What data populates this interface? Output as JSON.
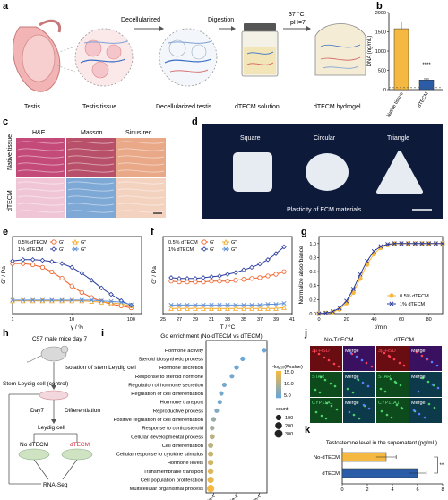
{
  "panel_letters": [
    "a",
    "b",
    "c",
    "d",
    "e",
    "f",
    "g",
    "h",
    "i",
    "j",
    "k"
  ],
  "panel_a": {
    "step_labels": [
      "Testis",
      "Testis tissue",
      "Decellularized testis",
      "dTECM solution",
      "dTECM hydrogel"
    ],
    "arrow_labels": [
      "Decellularized",
      "Digestion"
    ],
    "conditions": [
      "37 °C",
      "pH=7"
    ]
  },
  "panel_c": {
    "column_headers": [
      "H&E",
      "Masson",
      "Sirius red"
    ],
    "row_labels": [
      "Native tissue",
      "dTECM"
    ],
    "colors": {
      "he_native": "#c44a7a",
      "masson_native": "#b8506a",
      "sirius_native": "#e9a888",
      "he_dtecm": "#f0c6d6",
      "masson_dtecm": "#7ea8d6",
      "sirius_dtecm": "#f4d2c0"
    }
  },
  "panel_d": {
    "shape_labels": [
      "Square",
      "Circular",
      "Triangle"
    ],
    "caption": "Plasticity of ECM materials",
    "background_color": "#0d1a3a"
  },
  "panel_h": {
    "title": "C57 male mice day 7",
    "isolation_label": "Isolation of stem Leydig cell",
    "control_label": "Stem Leydig cell (control)",
    "day_label": "Day7",
    "diff_label": "Differentiation",
    "leydig_label": "Leydig cell",
    "no_dtecm_label": "No dTECM",
    "dtecm_label": "dTECM",
    "rnaseq_label": "RNA-Seq"
  },
  "panel_j": {
    "col_headers": [
      "No-TdECM",
      "dTECM"
    ],
    "markers": [
      "3β-HSD",
      "STAR",
      "CYP11A1"
    ],
    "merge_label": "Merge"
  },
  "chart_data": [
    {
      "panel": "b",
      "type": "bar",
      "categories": [
        "Native tissue",
        "dTECM"
      ],
      "values": [
        1580,
        250
      ],
      "error": [
        180,
        30
      ],
      "ylabel": "DNA (ng/mL)",
      "ylim": [
        0,
        2000
      ],
      "yticks": [
        0,
        500,
        1000,
        1500,
        2000
      ],
      "reference_line": 50,
      "significance": "****",
      "colors": [
        "#f5b942",
        "#2a5ca8"
      ]
    },
    {
      "panel": "e",
      "type": "line",
      "xscale": "log",
      "xlabel": "γ / %",
      "ylabel": "G' / Pa",
      "xlim": [
        1,
        150
      ],
      "xticks": [
        1,
        10,
        100
      ],
      "ylim": [
        0,
        120
      ],
      "legend": {
        "rows": [
          "0.5% dTECM",
          "1% dTECM"
        ],
        "cols": [
          "G'",
          "G\""
        ]
      },
      "series": [
        {
          "conc": "0.5% dTECM",
          "mod": "G'",
          "color": "#f05a1e",
          "marker": "circle",
          "x": [
            1,
            1.5,
            2.2,
            3.2,
            4.6,
            6.8,
            10,
            14.7,
            21.5,
            31.6,
            46,
            68,
            100
          ],
          "y": [
            78,
            78,
            76,
            72,
            65,
            55,
            43,
            33,
            25,
            19,
            15,
            12,
            9
          ]
        },
        {
          "conc": "0.5% dTECM",
          "mod": "G\"",
          "color": "#f5a623",
          "marker": "triangle",
          "x": [
            1,
            1.5,
            2.2,
            3.2,
            4.6,
            6.8,
            10,
            14.7,
            21.5,
            31.6,
            46,
            68,
            100
          ],
          "y": [
            20,
            20,
            20,
            20,
            20,
            20,
            20,
            20,
            19,
            18,
            17,
            15,
            12
          ]
        },
        {
          "conc": "1% dTECM",
          "mod": "G'",
          "color": "#2a3b9f",
          "marker": "diamond",
          "x": [
            1,
            1.5,
            2.2,
            3.2,
            4.6,
            6.8,
            10,
            14.7,
            21.5,
            31.6,
            46,
            68,
            100
          ],
          "y": [
            82,
            84,
            84,
            83,
            81,
            78,
            72,
            63,
            52,
            40,
            30,
            20,
            13
          ]
        },
        {
          "conc": "1% dTECM",
          "mod": "G\"",
          "color": "#5f8fd6",
          "marker": "star",
          "x": [
            1,
            1.5,
            2.2,
            3.2,
            4.6,
            6.8,
            10,
            14.7,
            21.5,
            31.6,
            46,
            68,
            100
          ],
          "y": [
            21,
            21,
            21,
            21,
            21,
            21,
            21,
            21,
            21,
            20,
            19,
            18,
            14
          ]
        }
      ]
    },
    {
      "panel": "f",
      "type": "line",
      "xlabel": "T / °C",
      "ylabel": "G' / Pa",
      "xlim": [
        25,
        41
      ],
      "xticks": [
        25,
        27,
        29,
        31,
        33,
        35,
        37,
        39,
        41
      ],
      "ylim": [
        0,
        90
      ],
      "legend": {
        "rows": [
          "0.5% dTECM",
          "1% dTECM"
        ],
        "cols": [
          "G'",
          "G\""
        ]
      },
      "series": [
        {
          "conc": "0.5% dTECM",
          "mod": "G'",
          "color": "#f05a1e",
          "marker": "circle",
          "x": [
            26,
            27,
            28,
            29,
            30,
            31,
            32,
            33,
            34,
            35,
            36,
            37,
            38,
            39,
            40
          ],
          "y": [
            38,
            37,
            37,
            37,
            37,
            38,
            38,
            38,
            39,
            40,
            41,
            42,
            44,
            46,
            49
          ]
        },
        {
          "conc": "0.5% dTECM",
          "mod": "G\"",
          "color": "#f5a623",
          "marker": "triangle",
          "x": [
            26,
            27,
            28,
            29,
            30,
            31,
            32,
            33,
            34,
            35,
            36,
            37,
            38,
            39,
            40
          ],
          "y": [
            6,
            6,
            6,
            6,
            6,
            6,
            6,
            6,
            6,
            6,
            6,
            6,
            6,
            6,
            7
          ]
        },
        {
          "conc": "1% dTECM",
          "mod": "G'",
          "color": "#2a3b9f",
          "marker": "diamond",
          "x": [
            26,
            27,
            28,
            29,
            30,
            31,
            32,
            33,
            34,
            35,
            36,
            37,
            38,
            39,
            40
          ],
          "y": [
            42,
            41,
            41,
            41,
            42,
            43,
            44,
            46,
            48,
            51,
            54,
            58,
            63,
            70,
            78
          ]
        },
        {
          "conc": "1% dTECM",
          "mod": "G\"",
          "color": "#5f8fd6",
          "marker": "star",
          "x": [
            26,
            27,
            28,
            29,
            30,
            31,
            32,
            33,
            34,
            35,
            36,
            37,
            38,
            39,
            40
          ],
          "y": [
            10,
            10,
            10,
            10,
            10,
            10,
            10,
            10,
            10,
            10,
            10,
            10,
            11,
            11,
            12
          ]
        }
      ]
    },
    {
      "panel": "g",
      "type": "line",
      "xlabel": "t/min",
      "ylabel": "Normalize absorbance",
      "xlim": [
        0,
        90
      ],
      "xticks": [
        0,
        20,
        40,
        60,
        80
      ],
      "ylim": [
        0,
        1.1
      ],
      "yticks": [
        0,
        0.2,
        0.4,
        0.6,
        0.8,
        1.0
      ],
      "series": [
        {
          "name": "0.5% dTECM",
          "color": "#f5b942",
          "marker": "circle",
          "x": [
            0,
            5,
            10,
            15,
            20,
            25,
            30,
            35,
            40,
            45,
            50,
            55,
            60,
            65,
            70,
            75,
            80,
            85,
            90
          ],
          "y": [
            0,
            0.01,
            0.02,
            0.06,
            0.15,
            0.3,
            0.5,
            0.7,
            0.85,
            0.94,
            0.98,
            1,
            1,
            1,
            1,
            1,
            1,
            1,
            1
          ]
        },
        {
          "name": "1% dTECM",
          "color": "#2a3b9f",
          "marker": "star",
          "x": [
            0,
            5,
            10,
            15,
            20,
            25,
            30,
            35,
            40,
            45,
            50,
            55,
            60,
            65,
            70,
            75,
            80,
            85,
            90
          ],
          "y": [
            0,
            0.01,
            0.03,
            0.08,
            0.18,
            0.35,
            0.56,
            0.75,
            0.89,
            0.96,
            0.99,
            1,
            1,
            1,
            1,
            1,
            1,
            1,
            1
          ]
        }
      ]
    },
    {
      "panel": "i",
      "type": "scatter",
      "title": "Go enrichment",
      "subtitle": "(No-dTECM vs dTECM)",
      "xlabel": "",
      "xticks": [
        "3*e-4",
        "6*e-4",
        "9*e-4"
      ],
      "categories": [
        "Hormone activity",
        "Steroid biosynthetic process",
        "Hormone secretion",
        "Response to steroid hormone",
        "Regulation of hormone secretion",
        "Regulation of cell differentiation",
        "Hormone transport",
        "Reproductive process",
        "Positive regulation of cell differentiation",
        "Response to corticosteroid",
        "Cellular developmental process",
        "Cell differentiation",
        "Cellular response to cytokine stimulus",
        "Hormone levels",
        "Transmembrane transport",
        "Cell population proliferation",
        "Multicellular organismal process"
      ],
      "x": [
        0.00096,
        0.00068,
        0.0006,
        0.00054,
        0.00044,
        0.0004,
        0.00038,
        0.00034,
        0.0003,
        0.00028,
        0.00028,
        0.00026,
        0.00026,
        0.00026,
        0.00026,
        0.00026,
        0.00026
      ],
      "neglog_pvalue": [
        5,
        5,
        5,
        6,
        6,
        6,
        6,
        7,
        9,
        10,
        12,
        12,
        13,
        14,
        15,
        16,
        17
      ],
      "count": [
        60,
        50,
        50,
        50,
        50,
        50,
        50,
        50,
        60,
        60,
        80,
        90,
        90,
        100,
        120,
        160,
        250
      ],
      "legend_title": "-log₁₀(Pvalue)",
      "color_ticks": [
        15.0,
        10.0,
        5.0
      ],
      "size_title": "count",
      "size_ticks": [
        100,
        200,
        300
      ],
      "color_range": [
        "#6aa6d8",
        "#f5b942"
      ]
    },
    {
      "panel": "k",
      "type": "bar",
      "orientation": "horizontal",
      "title": "Testosterone level in the supernatant (pg/mL)",
      "categories": [
        "No-dTECM",
        "dTECM"
      ],
      "values": [
        3.5,
        6.0
      ],
      "error": [
        0.8,
        0.7
      ],
      "significance": "**",
      "xlim": [
        0,
        8
      ],
      "xticks": [
        0,
        2,
        4,
        6,
        8
      ],
      "colors": [
        "#f5b942",
        "#2a5ca8"
      ]
    }
  ]
}
